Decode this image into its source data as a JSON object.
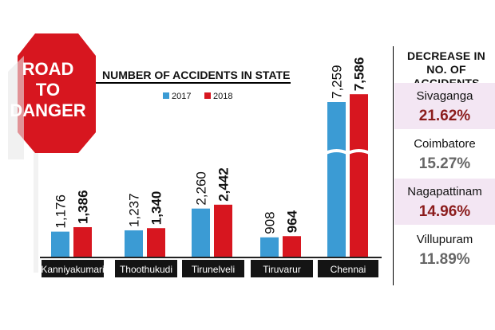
{
  "badge": {
    "line1": "ROAD",
    "line2": "TO",
    "line3": "DANGER"
  },
  "colors": {
    "y2017": "#3b9bd4",
    "y2018": "#d7161f",
    "badge": "#d7161f"
  },
  "chart_data": {
    "type": "bar",
    "title": "NUMBER OF ACCIDENTS IN STATE",
    "categories": [
      "Kanniyakumari",
      "Thoothukudi",
      "Tirunelveli",
      "Tiruvarur",
      "Chennai"
    ],
    "series": [
      {
        "name": "2017",
        "values": [
          1176,
          1237,
          2260,
          908,
          7259
        ],
        "labels": [
          "1,176",
          "1,237",
          "2,260",
          "908",
          "7,259"
        ]
      },
      {
        "name": "2018",
        "values": [
          1386,
          1340,
          2442,
          964,
          7586
        ],
        "labels": [
          "1,386",
          "1,340",
          "2,442",
          "964",
          "7,586"
        ]
      }
    ],
    "axis_break": {
      "category": "Chennai"
    },
    "ylim": [
      0,
      2600
    ],
    "legend": "top"
  },
  "decrease": {
    "title": "DECREASE IN NO. OF ACCIDENTS",
    "items": [
      {
        "city": "Sivaganga",
        "value": "21.62%",
        "highlight": true
      },
      {
        "city": "Coimbatore",
        "value": "15.27%",
        "highlight": false
      },
      {
        "city": "Nagapattinam",
        "value": "14.96%",
        "highlight": true
      },
      {
        "city": "Villupuram",
        "value": "11.89%",
        "highlight": false
      }
    ]
  }
}
